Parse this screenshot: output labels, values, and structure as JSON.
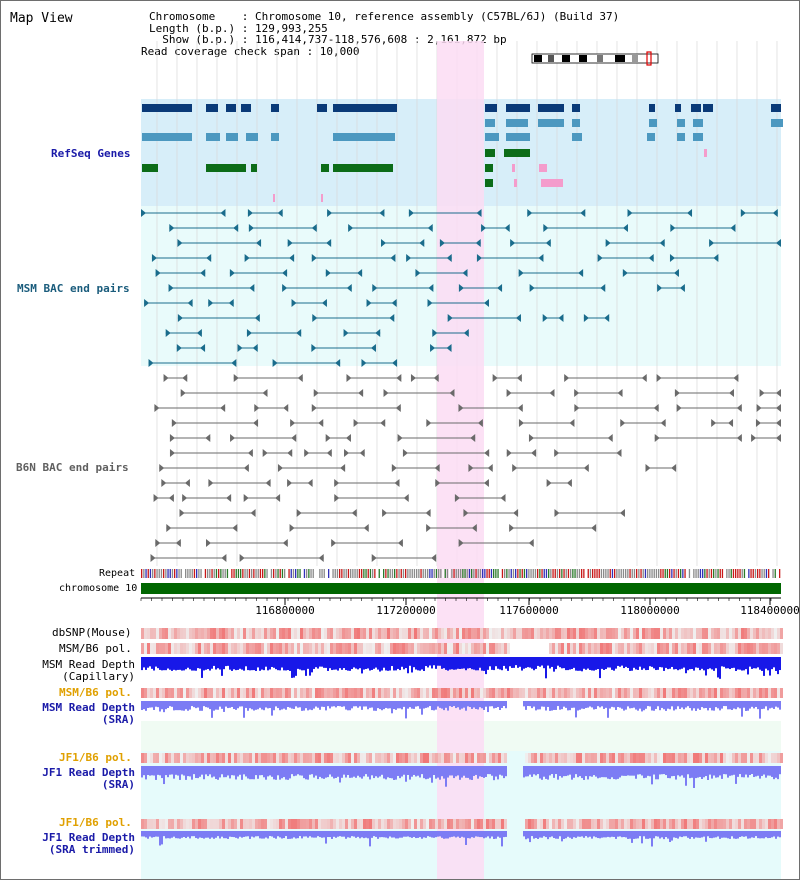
{
  "page": {
    "title": "Map View"
  },
  "info": {
    "chromosome_line": "Chromosome    : Chromosome 10, reference assembly (C57BL/6J) (Build 37)",
    "length_line": "Length (b.p.) : 129,993,255",
    "show_line": "  Show (b.p.) : 116,414,737-118,576,608 : 2,161,872 bp",
    "span_line": "Read coverage check span : 10,000"
  },
  "tracks": {
    "refseq": "RefSeq Genes",
    "msm_bac": "MSM BAC end pairs",
    "b6n_bac": "B6N BAC end pairs",
    "repeat": "Repeat",
    "chromosome": "chromosome 10",
    "dbsnp": "dbSNP(Mouse)",
    "msm_b6_pol_1": "MSM/B6 pol.",
    "msm_depth_cap_1": "MSM Read Depth",
    "msm_depth_cap_2": "(Capillary)",
    "msm_b6_pol_2": "MSM/B6 pol.",
    "msm_depth_sra_1": "MSM Read Depth",
    "msm_depth_sra_2": "(SRA)",
    "jf1_pol_1": "JF1/B6 pol.",
    "jf1_depth_1": "JF1 Read Depth",
    "jf1_depth_2": "(SRA)",
    "jf1_pol_2": "JF1/B6 pol.",
    "jf1_trim_1": "JF1 Read Depth",
    "jf1_trim_2": "(SRA trimmed)"
  },
  "axis": {
    "ticks": [
      "116800000",
      "117200000",
      "117600000",
      "118000000",
      "118400000"
    ]
  },
  "colors": {
    "highlight": "#fbdcf3",
    "refseq_bg": "#d7eef9",
    "msm_bac_bg": "#e9fbfb",
    "b6n_bac_bg": "#ffffff",
    "lower_bg": "#f0fbf3",
    "jf1_bg": "#e6fbfb",
    "label_blue": "#1a1aa8",
    "label_teal": "#1a5c7c",
    "label_orange": "#e0a000",
    "chromosome_green": "#006600",
    "depth_dark": "#1818e8",
    "depth_light": "#7c7cf4",
    "pol_red": "#f03030",
    "refseq_dark": "#0a3a78",
    "refseq_mid": "#4c98c0",
    "refseq_green": "#0c6c18",
    "refseq_pink": "#f49ccc"
  }
}
